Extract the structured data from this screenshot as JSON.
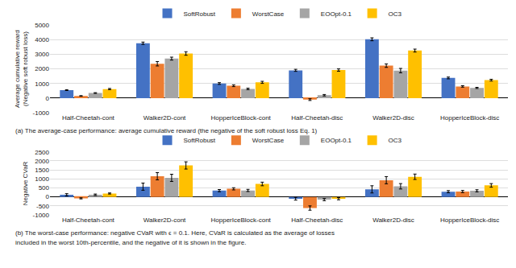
{
  "chart_data": [
    {
      "type": "bar",
      "categories": [
        "Half-Cheetah-cont",
        "Walker2D-cont",
        "HopperIceBlock-cont",
        "Half-Cheetah-disc",
        "Walker2D-disc",
        "HopperIceBlock-disc"
      ],
      "ylabel": "Average cumulative reward\n(Negative soft robust loss)",
      "ylim": [
        -1000,
        5000
      ],
      "yticks": [
        -1000,
        0,
        1000,
        2000,
        3000,
        4000,
        5000
      ],
      "grid": true,
      "legend": "top",
      "series": [
        {
          "name": "SoftRobust",
          "color": "#4472C4",
          "values": [
            550,
            3750,
            1000,
            1900,
            4020,
            1380
          ],
          "errors": [
            30,
            80,
            60,
            70,
            100,
            60
          ]
        },
        {
          "name": "WorstCase",
          "color": "#ED7D31",
          "values": [
            150,
            2350,
            850,
            -100,
            2220,
            800
          ],
          "errors": [
            20,
            150,
            60,
            60,
            120,
            50
          ]
        },
        {
          "name": "EOOpt-0.1",
          "color": "#A5A5A5",
          "values": [
            350,
            2700,
            630,
            200,
            1880,
            700
          ],
          "errors": [
            25,
            100,
            50,
            50,
            150,
            40
          ]
        },
        {
          "name": "OC3",
          "color": "#FFC000",
          "values": [
            620,
            3050,
            1080,
            1920,
            3250,
            1230
          ],
          "errors": [
            40,
            120,
            70,
            80,
            100,
            60
          ]
        }
      ],
      "annotations": [
        "(a) The average-case performance: average cumulative reward (the negative of the soft robust loss Eq. 1)"
      ]
    },
    {
      "type": "bar",
      "categories": [
        "Half-Cheetah-cont",
        "Walker2D-cont",
        "HopperIceBlock-cont",
        "Half-Cheetah-disc",
        "Walker2D-disc",
        "HopperIceBlock-disc"
      ],
      "ylabel": "Negative CVaR",
      "ylim": [
        -1000,
        2500
      ],
      "yticks": [
        -1000,
        -500,
        0,
        500,
        1000,
        1500,
        2000,
        2500
      ],
      "grid": true,
      "legend": "top",
      "series": [
        {
          "name": "SoftRobust",
          "color": "#4472C4",
          "values": [
            120,
            570,
            350,
            -100,
            420,
            290
          ],
          "errors": [
            60,
            200,
            60,
            80,
            200,
            60
          ]
        },
        {
          "name": "WorstCase",
          "color": "#ED7D31",
          "values": [
            -80,
            1150,
            450,
            -620,
            930,
            300
          ],
          "errors": [
            30,
            200,
            60,
            120,
            200,
            60
          ]
        },
        {
          "name": "EOOpt-0.1",
          "color": "#A5A5A5",
          "values": [
            120,
            1060,
            360,
            -150,
            590,
            340
          ],
          "errors": [
            40,
            200,
            60,
            60,
            150,
            60
          ]
        },
        {
          "name": "OC3",
          "color": "#FFC000",
          "values": [
            190,
            1750,
            720,
            -100,
            1120,
            640
          ],
          "errors": [
            30,
            200,
            100,
            60,
            150,
            100
          ]
        }
      ],
      "annotations": [
        "(b) The worst-case performance: negative CVaR with ϵ = 0.1. Here, CVaR is calculated as the average of losses",
        "included in the worst 10th-percentile, and the negative of it is shown in the figure."
      ]
    }
  ]
}
